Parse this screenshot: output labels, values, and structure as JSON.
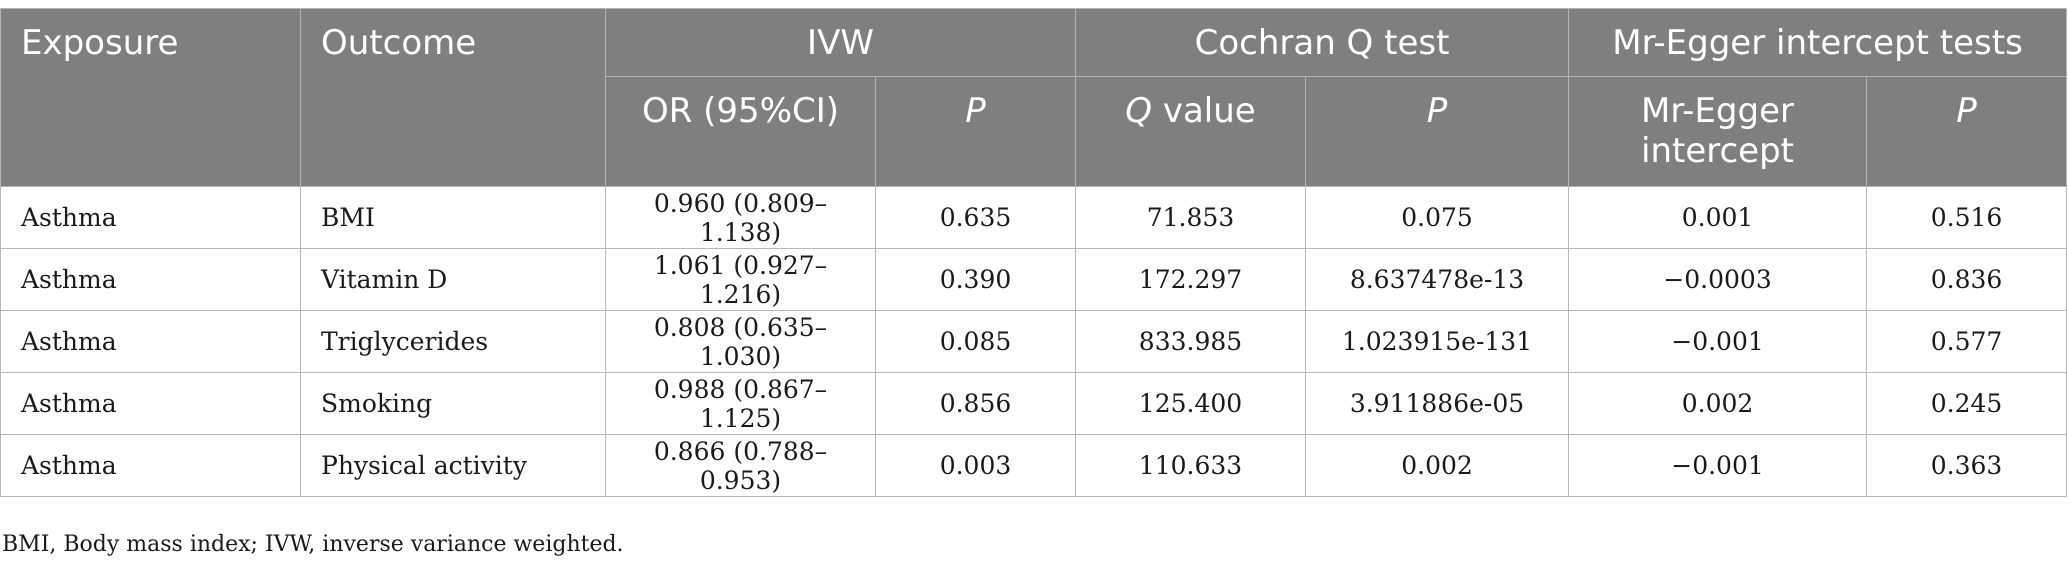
{
  "header": {
    "exposure": "Exposure",
    "outcome": "Outcome",
    "ivw": "IVW",
    "cochran": "Cochran Q test",
    "egger": "Mr-Egger intercept tests",
    "or_ci": "OR (95%CI)",
    "p1": "P",
    "q_italic": "Q",
    "q_rest": " value",
    "p2": "P",
    "egger_intercept": "Mr-Egger intercept",
    "p3": "P"
  },
  "rows": [
    {
      "exposure": "Asthma",
      "outcome": "BMI",
      "or": "0.960 (0.809–1.138)",
      "p_ivw": "0.635",
      "q": "71.853",
      "p_q": "0.075",
      "intercept": "0.001",
      "p_egger": "0.516"
    },
    {
      "exposure": "Asthma",
      "outcome": "Vitamin D",
      "or": "1.061 (0.927–1.216)",
      "p_ivw": "0.390",
      "q": "172.297",
      "p_q": "8.637478e-13",
      "intercept": "−0.0003",
      "p_egger": "0.836"
    },
    {
      "exposure": "Asthma",
      "outcome": "Triglycerides",
      "or": "0.808 (0.635–1.030)",
      "p_ivw": "0.085",
      "q": "833.985",
      "p_q": "1.023915e-131",
      "intercept": "−0.001",
      "p_egger": "0.577"
    },
    {
      "exposure": "Asthma",
      "outcome": "Smoking",
      "or": "0.988 (0.867–1.125)",
      "p_ivw": "0.856",
      "q": "125.400",
      "p_q": "3.911886e-05",
      "intercept": "0.002",
      "p_egger": "0.245"
    },
    {
      "exposure": "Asthma",
      "outcome": "Physical activity",
      "or": "0.866 (0.788–0.953)",
      "p_ivw": "0.003",
      "q": "110.633",
      "p_q": "0.002",
      "intercept": "−0.001",
      "p_egger": "0.363"
    }
  ],
  "footnote": "BMI, Body mass index; IVW, inverse variance weighted."
}
